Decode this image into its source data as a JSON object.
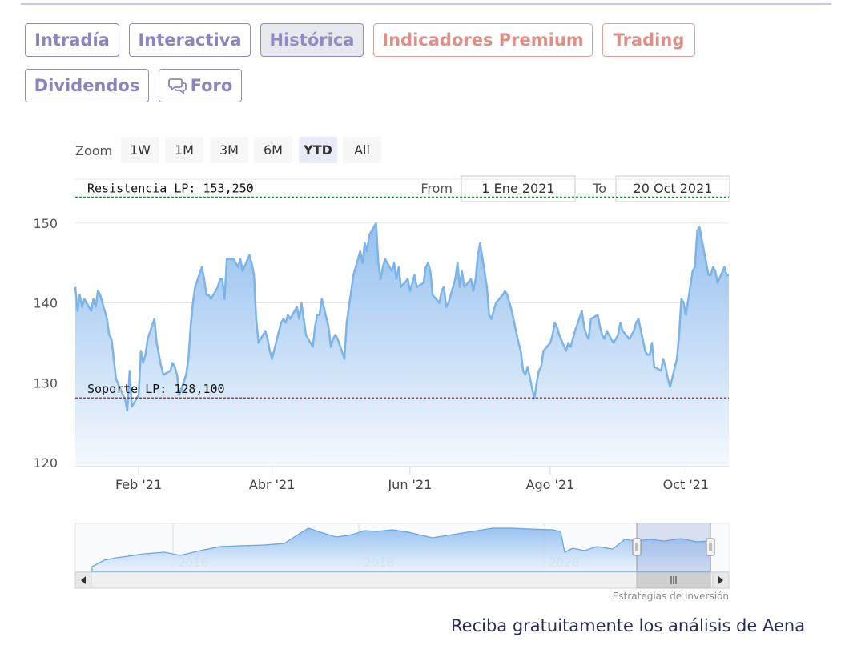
{
  "tabs": [
    {
      "label": "Intradía",
      "style": "normal"
    },
    {
      "label": "Interactiva",
      "style": "normal"
    },
    {
      "label": "Histórica",
      "style": "active"
    },
    {
      "label": "Indicadores Premium",
      "style": "premium"
    },
    {
      "label": "Trading",
      "style": "premium"
    },
    {
      "label": "Dividendos",
      "style": "normal"
    },
    {
      "label": "Foro",
      "style": "normal",
      "icon": "chat-bubbles-icon"
    }
  ],
  "zoom": {
    "label": "Zoom",
    "buttons": [
      "1W",
      "1M",
      "3M",
      "6M",
      "YTD",
      "All"
    ],
    "selected": "YTD"
  },
  "range": {
    "from_label": "From",
    "from_value": "1 Ene 2021",
    "to_label": "To",
    "to_value": "20 Oct 2021"
  },
  "chart_data": {
    "type": "area",
    "x_start": "2021-01-04",
    "x_end": "2021-10-20",
    "y_ticks": [
      120,
      130,
      140,
      150
    ],
    "ylim": [
      119.5,
      155.5
    ],
    "x_ticks": [
      {
        "label": "Feb '21",
        "date": "2021-02-01"
      },
      {
        "label": "Abr '21",
        "date": "2021-04-01"
      },
      {
        "label": "Jun '21",
        "date": "2021-06-01"
      },
      {
        "label": "Ago '21",
        "date": "2021-08-02"
      },
      {
        "label": "Oct '21",
        "date": "2021-10-01"
      }
    ],
    "series": [
      {
        "values": [
          [
            "2021-01-04",
            142.0
          ],
          [
            "2021-01-05",
            139.0
          ],
          [
            "2021-01-06",
            141.0
          ],
          [
            "2021-01-07",
            139.5
          ],
          [
            "2021-01-08",
            140.5
          ],
          [
            "2021-01-11",
            139.0
          ],
          [
            "2021-01-12",
            140.5
          ],
          [
            "2021-01-13",
            139.5
          ],
          [
            "2021-01-14",
            141.5
          ],
          [
            "2021-01-15",
            141.0
          ],
          [
            "2021-01-18",
            138.0
          ],
          [
            "2021-01-19",
            136.0
          ],
          [
            "2021-01-20",
            135.5
          ],
          [
            "2021-01-21",
            133.0
          ],
          [
            "2021-01-22",
            130.5
          ],
          [
            "2021-01-25",
            128.5
          ],
          [
            "2021-01-26",
            128.0
          ],
          [
            "2021-01-27",
            126.5
          ],
          [
            "2021-01-28",
            131.5
          ],
          [
            "2021-01-29",
            127.0
          ],
          [
            "2021-02-01",
            128.5
          ],
          [
            "2021-02-02",
            134.0
          ],
          [
            "2021-02-03",
            132.5
          ],
          [
            "2021-02-04",
            133.5
          ],
          [
            "2021-02-05",
            135.5
          ],
          [
            "2021-02-08",
            138.0
          ],
          [
            "2021-02-09",
            135.0
          ],
          [
            "2021-02-10",
            133.5
          ],
          [
            "2021-02-11",
            132.0
          ],
          [
            "2021-02-12",
            131.0
          ],
          [
            "2021-02-15",
            131.5
          ],
          [
            "2021-02-16",
            132.5
          ],
          [
            "2021-02-17",
            132.0
          ],
          [
            "2021-02-18",
            131.0
          ],
          [
            "2021-02-19",
            128.5
          ],
          [
            "2021-02-22",
            131.0
          ],
          [
            "2021-02-23",
            133.0
          ],
          [
            "2021-02-24",
            137.0
          ],
          [
            "2021-02-25",
            140.0
          ],
          [
            "2021-02-26",
            142.0
          ],
          [
            "2021-03-01",
            144.5
          ],
          [
            "2021-03-02",
            143.0
          ],
          [
            "2021-03-03",
            141.0
          ],
          [
            "2021-03-04",
            141.0
          ],
          [
            "2021-03-05",
            140.5
          ],
          [
            "2021-03-08",
            142.0
          ],
          [
            "2021-03-09",
            143.0
          ],
          [
            "2021-03-10",
            143.0
          ],
          [
            "2021-03-11",
            140.5
          ],
          [
            "2021-03-12",
            145.5
          ],
          [
            "2021-03-15",
            145.5
          ],
          [
            "2021-03-16",
            145.0
          ],
          [
            "2021-03-17",
            144.5
          ],
          [
            "2021-03-18",
            145.5
          ],
          [
            "2021-03-19",
            144.0
          ],
          [
            "2021-03-22",
            146.0
          ],
          [
            "2021-03-23",
            145.0
          ],
          [
            "2021-03-24",
            143.5
          ],
          [
            "2021-03-25",
            138.0
          ],
          [
            "2021-03-26",
            135.0
          ],
          [
            "2021-03-29",
            136.5
          ],
          [
            "2021-03-30",
            135.5
          ],
          [
            "2021-03-31",
            134.0
          ],
          [
            "2021-04-01",
            133.0
          ],
          [
            "2021-04-05",
            137.5
          ],
          [
            "2021-04-06",
            138.0
          ],
          [
            "2021-04-07",
            137.5
          ],
          [
            "2021-04-08",
            138.5
          ],
          [
            "2021-04-09",
            138.0
          ],
          [
            "2021-04-12",
            139.5
          ],
          [
            "2021-04-13",
            138.0
          ],
          [
            "2021-04-14",
            140.0
          ],
          [
            "2021-04-15",
            138.0
          ],
          [
            "2021-04-16",
            136.0
          ],
          [
            "2021-04-19",
            134.5
          ],
          [
            "2021-04-20",
            137.0
          ],
          [
            "2021-04-21",
            138.5
          ],
          [
            "2021-04-22",
            138.5
          ],
          [
            "2021-04-23",
            140.5
          ],
          [
            "2021-04-26",
            137.0
          ],
          [
            "2021-04-27",
            134.5
          ],
          [
            "2021-04-28",
            135.5
          ],
          [
            "2021-04-29",
            136.0
          ],
          [
            "2021-04-30",
            135.5
          ],
          [
            "2021-05-03",
            133.0
          ],
          [
            "2021-05-04",
            137.5
          ],
          [
            "2021-05-05",
            139.5
          ],
          [
            "2021-05-06",
            141.5
          ],
          [
            "2021-05-07",
            143.5
          ],
          [
            "2021-05-10",
            146.5
          ],
          [
            "2021-05-11",
            145.0
          ],
          [
            "2021-05-12",
            147.5
          ],
          [
            "2021-05-13",
            146.5
          ],
          [
            "2021-05-14",
            148.5
          ],
          [
            "2021-05-17",
            150.0
          ],
          [
            "2021-05-18",
            145.0
          ],
          [
            "2021-05-19",
            143.0
          ],
          [
            "2021-05-20",
            144.5
          ],
          [
            "2021-05-21",
            145.5
          ],
          [
            "2021-05-24",
            144.0
          ],
          [
            "2021-05-25",
            145.0
          ],
          [
            "2021-05-26",
            143.0
          ],
          [
            "2021-05-27",
            144.5
          ],
          [
            "2021-05-28",
            142.0
          ],
          [
            "2021-05-31",
            143.0
          ],
          [
            "2021-06-01",
            141.5
          ],
          [
            "2021-06-02",
            142.5
          ],
          [
            "2021-06-03",
            143.5
          ],
          [
            "2021-06-04",
            142.0
          ],
          [
            "2021-06-07",
            142.5
          ],
          [
            "2021-06-08",
            144.5
          ],
          [
            "2021-06-09",
            145.0
          ],
          [
            "2021-06-10",
            144.0
          ],
          [
            "2021-06-11",
            141.0
          ],
          [
            "2021-06-14",
            140.0
          ],
          [
            "2021-06-15",
            141.5
          ],
          [
            "2021-06-16",
            142.0
          ],
          [
            "2021-06-17",
            139.5
          ],
          [
            "2021-06-18",
            140.0
          ],
          [
            "2021-06-21",
            143.0
          ],
          [
            "2021-06-22",
            145.0
          ],
          [
            "2021-06-23",
            142.0
          ],
          [
            "2021-06-24",
            144.0
          ],
          [
            "2021-06-25",
            142.0
          ],
          [
            "2021-06-28",
            143.0
          ],
          [
            "2021-06-29",
            141.5
          ],
          [
            "2021-06-30",
            143.0
          ],
          [
            "2021-07-01",
            146.0
          ],
          [
            "2021-07-02",
            147.5
          ],
          [
            "2021-07-05",
            142.0
          ],
          [
            "2021-07-06",
            138.5
          ],
          [
            "2021-07-07",
            138.0
          ],
          [
            "2021-07-08",
            139.0
          ],
          [
            "2021-07-09",
            140.0
          ],
          [
            "2021-07-12",
            141.0
          ],
          [
            "2021-07-13",
            141.5
          ],
          [
            "2021-07-14",
            141.0
          ],
          [
            "2021-07-15",
            140.0
          ],
          [
            "2021-07-16",
            139.0
          ],
          [
            "2021-07-19",
            135.0
          ],
          [
            "2021-07-20",
            134.0
          ],
          [
            "2021-07-21",
            131.5
          ],
          [
            "2021-07-22",
            131.0
          ],
          [
            "2021-07-23",
            132.0
          ],
          [
            "2021-07-26",
            128.0
          ],
          [
            "2021-07-27",
            130.0
          ],
          [
            "2021-07-28",
            131.5
          ],
          [
            "2021-07-29",
            132.0
          ],
          [
            "2021-07-30",
            134.0
          ],
          [
            "2021-08-02",
            135.0
          ],
          [
            "2021-08-03",
            136.0
          ],
          [
            "2021-08-04",
            137.5
          ],
          [
            "2021-08-05",
            137.0
          ],
          [
            "2021-08-06",
            136.0
          ],
          [
            "2021-08-09",
            134.0
          ],
          [
            "2021-08-10",
            135.0
          ],
          [
            "2021-08-11",
            134.5
          ],
          [
            "2021-08-12",
            135.5
          ],
          [
            "2021-08-13",
            136.5
          ],
          [
            "2021-08-16",
            139.0
          ],
          [
            "2021-08-17",
            137.0
          ],
          [
            "2021-08-18",
            136.0
          ],
          [
            "2021-08-19",
            135.5
          ],
          [
            "2021-08-20",
            138.0
          ],
          [
            "2021-08-23",
            138.5
          ],
          [
            "2021-08-24",
            137.0
          ],
          [
            "2021-08-25",
            136.0
          ],
          [
            "2021-08-26",
            135.5
          ],
          [
            "2021-08-27",
            136.5
          ],
          [
            "2021-08-30",
            135.0
          ],
          [
            "2021-08-31",
            135.5
          ],
          [
            "2021-09-01",
            136.0
          ],
          [
            "2021-09-02",
            137.5
          ],
          [
            "2021-09-03",
            136.5
          ],
          [
            "2021-09-06",
            135.5
          ],
          [
            "2021-09-07",
            136.0
          ],
          [
            "2021-09-08",
            136.5
          ],
          [
            "2021-09-09",
            137.5
          ],
          [
            "2021-09-10",
            138.0
          ],
          [
            "2021-09-13",
            134.0
          ],
          [
            "2021-09-14",
            133.5
          ],
          [
            "2021-09-15",
            133.5
          ],
          [
            "2021-09-16",
            135.0
          ],
          [
            "2021-09-17",
            132.0
          ],
          [
            "2021-09-20",
            131.5
          ],
          [
            "2021-09-21",
            133.0
          ],
          [
            "2021-09-22",
            132.0
          ],
          [
            "2021-09-23",
            130.5
          ],
          [
            "2021-09-24",
            129.5
          ],
          [
            "2021-09-27",
            133.0
          ],
          [
            "2021-09-28",
            136.0
          ],
          [
            "2021-09-29",
            140.5
          ],
          [
            "2021-09-30",
            140.0
          ],
          [
            "2021-10-01",
            138.5
          ],
          [
            "2021-10-04",
            144.0
          ],
          [
            "2021-10-05",
            144.5
          ],
          [
            "2021-10-06",
            149.0
          ],
          [
            "2021-10-07",
            149.5
          ],
          [
            "2021-10-08",
            148.0
          ],
          [
            "2021-10-11",
            143.5
          ],
          [
            "2021-10-12",
            143.5
          ],
          [
            "2021-10-13",
            144.5
          ],
          [
            "2021-10-14",
            144.0
          ],
          [
            "2021-10-15",
            142.5
          ],
          [
            "2021-10-18",
            144.5
          ],
          [
            "2021-10-19",
            143.5
          ],
          [
            "2021-10-20",
            143.5
          ]
        ]
      }
    ],
    "annotations": [
      {
        "label": "Resistencia LP: 153,250",
        "value": 153.25,
        "color": "#1f8a2a"
      },
      {
        "label": "Soporte LP: 128,100",
        "value": 128.1,
        "color": "#b5121b"
      }
    ],
    "navigator": {
      "x_labels": [
        "2016",
        "2018",
        "2020"
      ],
      "credits": "Estrategias de Inversión"
    },
    "colors": {
      "line": "#7cb3e8",
      "fill_top": "#92bfee",
      "fill_bottom": "#f2f7fd"
    }
  },
  "footer": {
    "cta": "Reciba gratuitamente los análisis de Aena"
  }
}
